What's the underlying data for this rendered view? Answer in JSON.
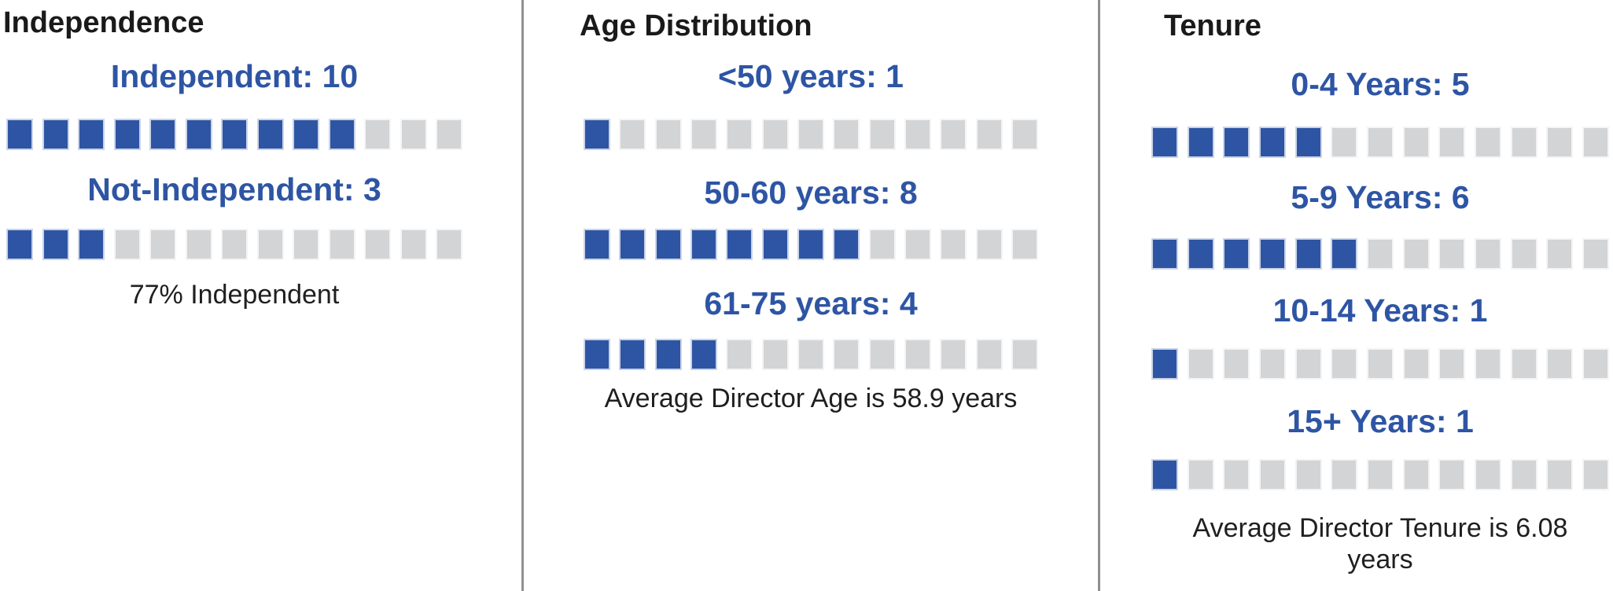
{
  "colors": {
    "accent_blue": "#2e55a4",
    "empty_gray": "#d2d4d6",
    "title_black": "#1a1a1a",
    "caption_black": "#1f1f1f",
    "divider_gray": "#909090",
    "background": "#ffffff"
  },
  "total_units_per_row": 13,
  "panels": [
    {
      "title": "Independence",
      "rows": [
        {
          "label": "Independent: 10",
          "filled": 10
        },
        {
          "label": "Not-Independent: 3",
          "filled": 3
        }
      ],
      "caption_lines": [
        "77% Independent"
      ]
    },
    {
      "title": "Age Distribution",
      "rows": [
        {
          "label": "<50 years: 1",
          "filled": 1
        },
        {
          "label": "50-60 years: 8",
          "filled": 8
        },
        {
          "label": "61-75 years: 4",
          "filled": 4
        }
      ],
      "caption_lines": [
        "Average Director Age is 58.9 years"
      ]
    },
    {
      "title": "Tenure",
      "rows": [
        {
          "label": "0-4 Years: 5",
          "filled": 5
        },
        {
          "label": "5-9 Years: 6",
          "filled": 6
        },
        {
          "label": "10-14 Years: 1",
          "filled": 1
        },
        {
          "label": "15+ Years: 1",
          "filled": 1
        }
      ],
      "caption_lines": [
        "Average Director Tenure is 6.08",
        "years"
      ]
    }
  ],
  "chart_data": [
    {
      "type": "bar",
      "subtype": "pictograph-waffle-rows",
      "title": "Independence",
      "categories": [
        "Independent",
        "Not-Independent"
      ],
      "values": [
        10,
        3
      ],
      "units_per_row": 13,
      "annotation": "77% Independent",
      "legend_position": "none",
      "grid": false
    },
    {
      "type": "bar",
      "subtype": "pictograph-waffle-rows",
      "title": "Age Distribution",
      "categories": [
        "<50 years",
        "50-60 years",
        "61-75 years"
      ],
      "values": [
        1,
        8,
        4
      ],
      "units_per_row": 13,
      "annotation": "Average Director Age is 58.9 years",
      "legend_position": "none",
      "grid": false
    },
    {
      "type": "bar",
      "subtype": "pictograph-waffle-rows",
      "title": "Tenure",
      "categories": [
        "0-4 Years",
        "5-9 Years",
        "10-14 Years",
        "15+ Years"
      ],
      "values": [
        5,
        6,
        1,
        1
      ],
      "units_per_row": 13,
      "annotation": "Average Director Tenure is 6.08 years",
      "legend_position": "none",
      "grid": false
    }
  ]
}
